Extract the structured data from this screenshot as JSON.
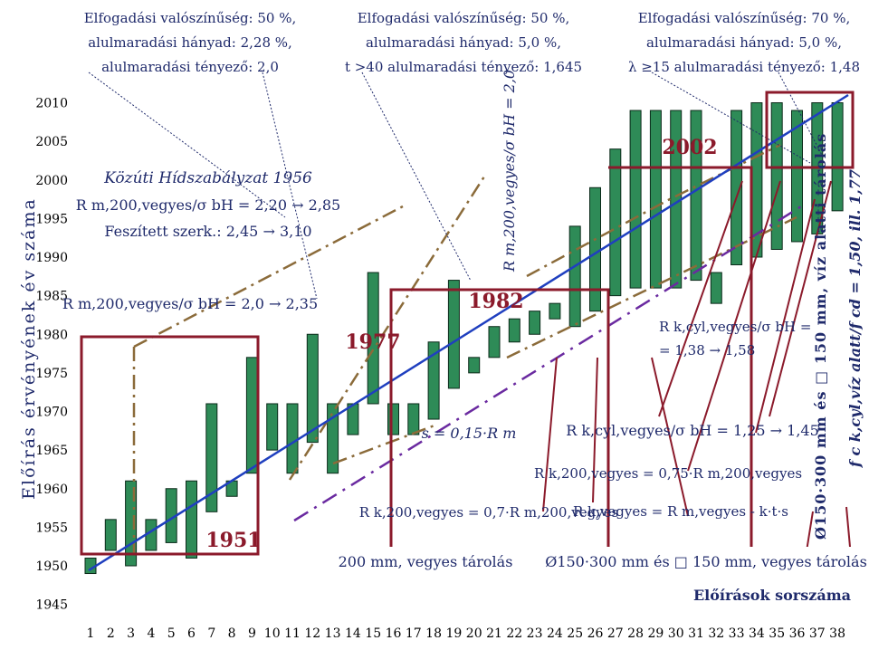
{
  "chart_data": {
    "type": "bar",
    "title": "",
    "xlabel": "Előírások sorszáma",
    "ylabel": "Előírás érvényének év száma",
    "x": [
      1,
      2,
      3,
      4,
      5,
      6,
      7,
      8,
      9,
      10,
      11,
      12,
      13,
      14,
      15,
      16,
      17,
      18,
      19,
      20,
      21,
      22,
      23,
      24,
      25,
      26,
      27,
      28,
      29,
      30,
      31,
      32,
      33,
      34,
      35,
      36,
      37,
      38
    ],
    "xlim": [
      1,
      38
    ],
    "ylim": [
      1945,
      2010
    ],
    "yticks": [
      1945,
      1950,
      1955,
      1960,
      1965,
      1970,
      1975,
      1980,
      1985,
      1990,
      1995,
      2000,
      2005,
      2010
    ],
    "series": [
      {
        "values": [
          [
            1949,
            1951
          ],
          [
            1952,
            1956
          ],
          [
            1950,
            1961
          ],
          [
            1952,
            1956
          ],
          [
            1953,
            1960
          ],
          [
            1951,
            1961
          ],
          [
            1957,
            1971
          ],
          [
            1959,
            1961
          ],
          [
            1962,
            1977
          ],
          [
            1965,
            1971
          ],
          [
            1962,
            1971
          ],
          [
            1966,
            1980
          ],
          [
            1962,
            1971
          ],
          [
            1967,
            1971
          ],
          [
            1971,
            1988
          ],
          [
            1967,
            1971
          ],
          [
            1967,
            1971
          ],
          [
            1969,
            1979
          ],
          [
            1973,
            1987
          ],
          [
            1975,
            1977
          ],
          [
            1977,
            1981
          ],
          [
            1979,
            1982
          ],
          [
            1980,
            1983
          ],
          [
            1982,
            1984
          ],
          [
            1981,
            1994
          ],
          [
            1983,
            1999
          ],
          [
            1985,
            2004
          ],
          [
            1986,
            2009
          ],
          [
            1986,
            2009
          ],
          [
            1986,
            2009
          ],
          [
            1987,
            2009
          ],
          [
            1984,
            1988
          ],
          [
            1989,
            2009
          ],
          [
            1990,
            2010
          ],
          [
            1991,
            2010
          ],
          [
            1992,
            2009
          ],
          [
            1993,
            2010
          ],
          [
            1996,
            2010
          ]
        ]
      }
    ],
    "grid": false
  },
  "colors": {
    "bar": "#2e8b57",
    "frame": "#8b1a2b",
    "regression": "#1f3fbf",
    "dashdot": "#8b6b3a",
    "purple": "#6a2aa0",
    "text": "#1f2a6b"
  },
  "top_annotations": [
    [
      "Elfogadási valószínűség: 50 %,",
      "alulmaradási hányad: 2,28 %,",
      "alulmaradási tényező: 2,0"
    ],
    [
      "Elfogadási valószínűség: 50 %,",
      "alulmaradási hányad: 5,0 %,",
      "t >40 alulmaradási tényező: 1,645"
    ],
    [
      "Elfogadási valószínűség: 70 %,",
      "alulmaradási hányad: 5,0 %,",
      "λ ≥15 alulmaradási tényező: 1,48"
    ]
  ],
  "labels": {
    "kozuti": "Közúti Hídszabályzat 1956",
    "rm1": "R m,200,vegyes/σ bH = 2,20 → 2,85",
    "feszitett": "Feszített szerk.: 2,45 → 3,10",
    "rm2": "R m,200,vegyes/σ bH = 2,0 → 2,35",
    "y1951": "1951",
    "y1977": "1977",
    "y1982": "1982",
    "y2002": "2002",
    "vertical_mid": "R m,200,vegyes/σ bH = 2,0",
    "s_eq": "s = 0,15·R m",
    "rk_07": "R k,200,vegyes = 0,7·R m,200,vegyes",
    "tarolas_200": "200 mm, vegyes tárolás",
    "rkcyl1": "R k,cyl,vegyes/σ bH =",
    "rkcyl2": "= 1,38 → 1,58",
    "rk_125": "R k,cyl,vegyes/σ bH = 1,25 → 1,45",
    "rk_075": "R k,200,vegyes = 0,75·R m,200,vegyes",
    "rk_kts": "R k,vegyes = R m,vegyes - k·t·s",
    "tarolas_150": "Ø150·300 mm és □ 150 mm, vegyes tárolás",
    "right_vertical": "Ø150·300 mm és □ 150 mm, víz alatti tárolás",
    "fc_vertical": "f c k,cyl,víz alatt/f cd = 1,50, ill. 1,77"
  }
}
